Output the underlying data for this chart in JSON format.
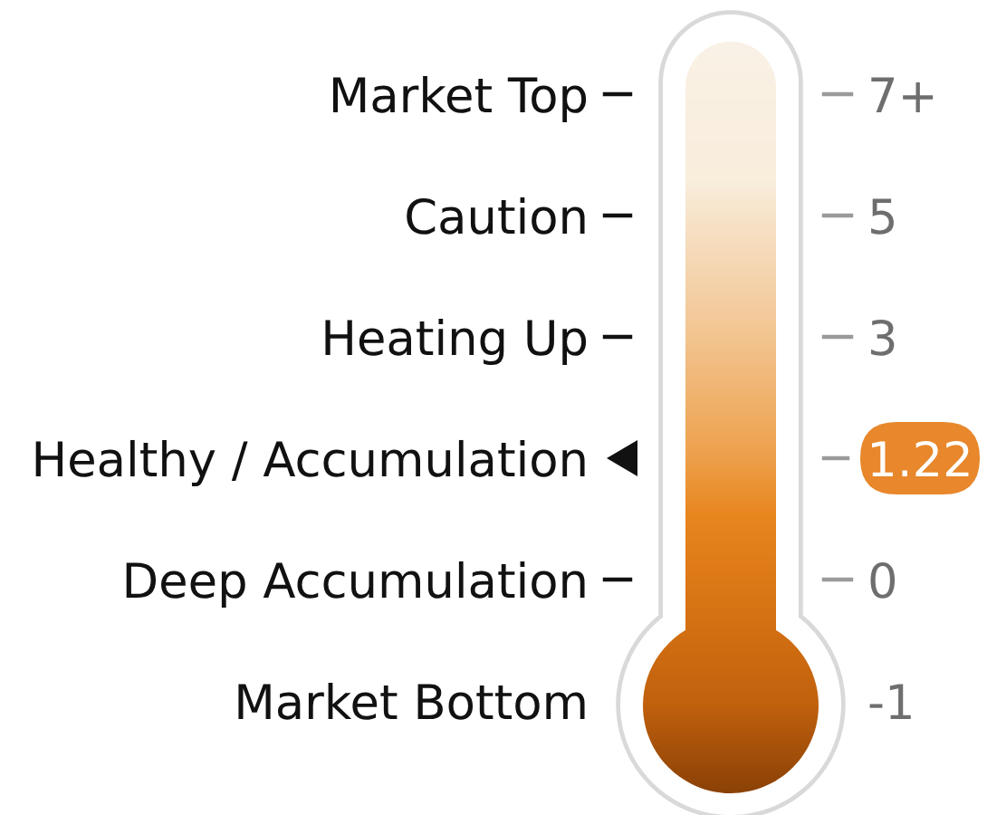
{
  "chart_data": {
    "type": "other",
    "categories": [
      "Market Top",
      "Caution",
      "Heating Up",
      "Healthy / Accumulation",
      "Deep Accumulation",
      "Market Bottom"
    ],
    "values": [
      7,
      5,
      3,
      1.22,
      0,
      -1
    ],
    "value_labels": [
      "7+",
      "5",
      "3",
      "1.22",
      "0",
      "-1"
    ],
    "colors": [
      null,
      null,
      null,
      "#e8872b",
      null,
      null
    ]
  }
}
